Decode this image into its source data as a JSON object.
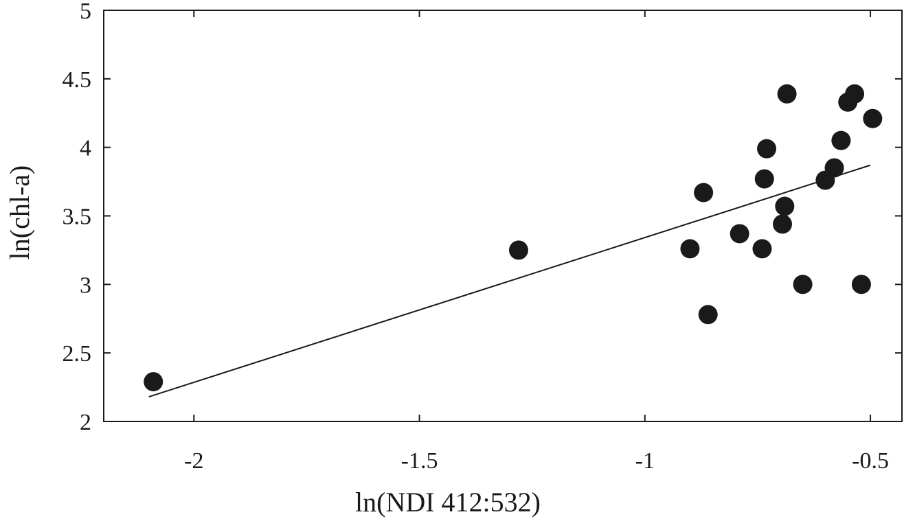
{
  "chart_data": {
    "type": "scatter",
    "title": "",
    "xlabel": "ln(NDI 412:532)",
    "ylabel": "ln(chl-a)",
    "xlim": [
      -2.2,
      -0.43
    ],
    "ylim": [
      2,
      5
    ],
    "xticks": [
      -2,
      -1.5,
      -1,
      -0.5
    ],
    "yticks": [
      2,
      2.5,
      3,
      3.5,
      4,
      4.5,
      5
    ],
    "xtick_labels": [
      "-2",
      "-1.5",
      "-1",
      "-0.5"
    ],
    "ytick_labels": [
      "2",
      "2.5",
      "3",
      "3.5",
      "4",
      "4.5",
      "5"
    ],
    "grid": false,
    "series": [
      {
        "x": [
          -2.09,
          -1.28,
          -0.9,
          -0.87,
          -0.86,
          -0.79,
          -0.74,
          -0.735,
          -0.73,
          -0.695,
          -0.69,
          -0.685,
          -0.65,
          -0.6,
          -0.58,
          -0.565,
          -0.55,
          -0.535,
          -0.52,
          -0.495
        ],
        "y": [
          2.29,
          3.25,
          3.26,
          3.67,
          2.78,
          3.37,
          3.26,
          3.77,
          3.99,
          3.44,
          3.57,
          4.39,
          3.0,
          3.76,
          3.85,
          4.05,
          4.33,
          4.39,
          3.0,
          4.21
        ]
      }
    ],
    "fit_line": {
      "x": [
        -2.1,
        -0.5
      ],
      "y": [
        2.18,
        3.87
      ]
    }
  }
}
